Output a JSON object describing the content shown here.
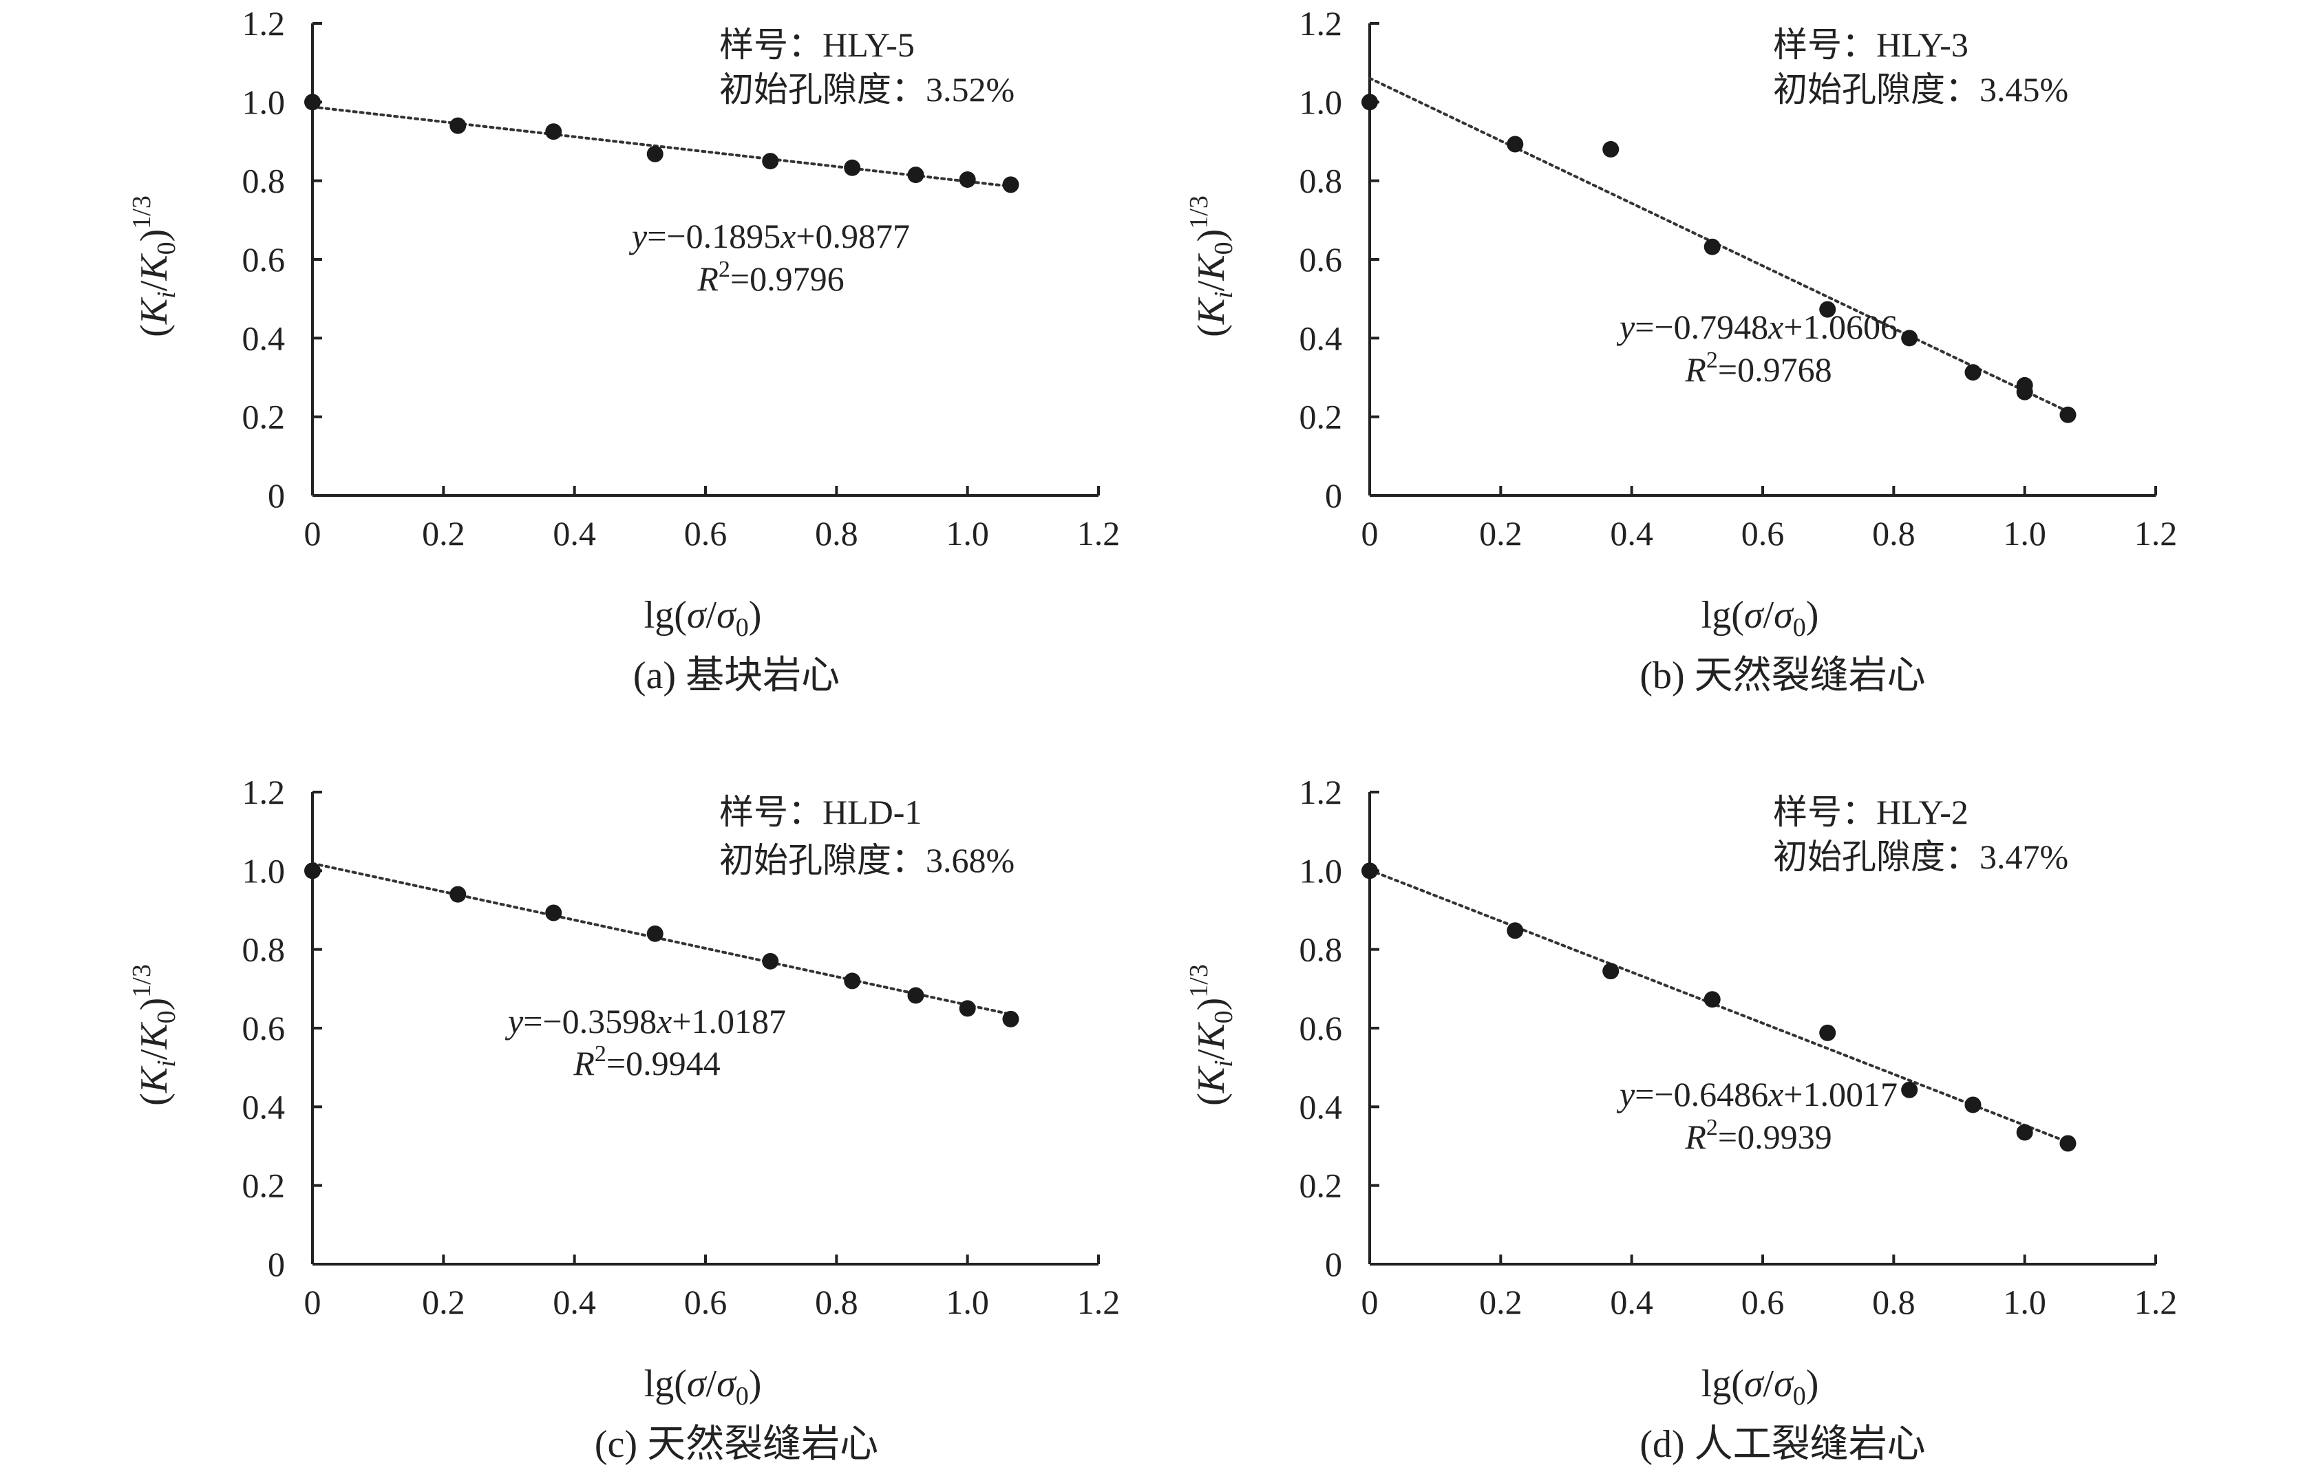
{
  "chart_data": [
    {
      "type": "scatter",
      "caption": "(a) 基块岩心",
      "sample_label": "样号：HLY-5",
      "porosity_label": "初始孔隙度：3.52%",
      "equation": "y=−0.1895x+0.9877",
      "r2": "R²=0.9796",
      "fit": {
        "slope": -0.1895,
        "intercept": 0.9877
      },
      "xlabel": "lg(σ/σ₀)",
      "ylabel": "(Kᵢ/K₀)¹ᐟ³",
      "xlim": [
        0,
        1.2
      ],
      "ylim": [
        0,
        1.2
      ],
      "xticks": [
        "0",
        "0.2",
        "0.4",
        "0.6",
        "0.8",
        "1.0",
        "1.2"
      ],
      "yticks": [
        "0",
        "0.2",
        "0.4",
        "0.6",
        "0.8",
        "1.0",
        "1.2"
      ],
      "points": [
        [
          0,
          1.0
        ],
        [
          0.222,
          0.94
        ],
        [
          0.368,
          0.925
        ],
        [
          0.523,
          0.868
        ],
        [
          0.699,
          0.85
        ],
        [
          0.824,
          0.833
        ],
        [
          0.921,
          0.815
        ],
        [
          1.0,
          0.803
        ],
        [
          1.066,
          0.79
        ]
      ]
    },
    {
      "type": "scatter",
      "caption": "(b) 天然裂缝岩心",
      "sample_label": "样号：HLY-3",
      "porosity_label": "初始孔隙度：3.45%",
      "equation": "y=−0.7948x+1.0606",
      "r2": "R²=0.9768",
      "fit": {
        "slope": -0.7948,
        "intercept": 1.0606
      },
      "xlabel": "lg(σ/σ₀)",
      "ylabel": "(Kᵢ/K₀)¹ᐟ³",
      "xlim": [
        0,
        1.2
      ],
      "ylim": [
        0,
        1.2
      ],
      "xticks": [
        "0",
        "0.2",
        "0.4",
        "0.6",
        "0.8",
        "1.0",
        "1.2"
      ],
      "yticks": [
        "0",
        "0.2",
        "0.4",
        "0.6",
        "0.8",
        "1.0",
        "1.2"
      ],
      "points": [
        [
          0,
          1.0
        ],
        [
          0.222,
          0.893
        ],
        [
          0.368,
          0.88
        ],
        [
          0.523,
          0.632
        ],
        [
          0.699,
          0.473
        ],
        [
          0.824,
          0.4
        ],
        [
          0.921,
          0.313
        ],
        [
          1.0,
          0.28
        ],
        [
          1.0,
          0.263
        ],
        [
          1.066,
          0.205
        ]
      ]
    },
    {
      "type": "scatter",
      "caption": "(c) 天然裂缝岩心",
      "sample_label": "样号：HLD-1",
      "porosity_label": "初始孔隙度：3.68%",
      "equation": "y=−0.3598x+1.0187",
      "r2": "R²=0.9944",
      "fit": {
        "slope": -0.3598,
        "intercept": 1.0187
      },
      "xlabel": "lg(σ/σ₀)",
      "ylabel": "(Kᵢ/K₀)¹ᐟ³",
      "xlim": [
        0,
        1.2
      ],
      "ylim": [
        0,
        1.2
      ],
      "xticks": [
        "0",
        "0.2",
        "0.4",
        "0.6",
        "0.8",
        "1.0",
        "1.2"
      ],
      "yticks": [
        "0",
        "0.2",
        "0.4",
        "0.6",
        "0.8",
        "1.0",
        "1.2"
      ],
      "points": [
        [
          0,
          1.0
        ],
        [
          0.222,
          0.94
        ],
        [
          0.368,
          0.893
        ],
        [
          0.523,
          0.84
        ],
        [
          0.699,
          0.77
        ],
        [
          0.824,
          0.72
        ],
        [
          0.921,
          0.683
        ],
        [
          1.0,
          0.65
        ],
        [
          1.066,
          0.623
        ]
      ]
    },
    {
      "type": "scatter",
      "caption": "(d) 人工裂缝岩心",
      "sample_label": "样号：HLY-2",
      "porosity_label": "初始孔隙度：3.47%",
      "equation": "y=−0.6486x+1.0017",
      "r2": "R²=0.9939",
      "fit": {
        "slope": -0.6486,
        "intercept": 1.0017
      },
      "xlabel": "lg(σ/σ₀)",
      "ylabel": "(Kᵢ/K₀)¹ᐟ³",
      "xlim": [
        0,
        1.2
      ],
      "ylim": [
        0,
        1.2
      ],
      "xticks": [
        "0",
        "0.2",
        "0.4",
        "0.6",
        "0.8",
        "1.0",
        "1.2"
      ],
      "yticks": [
        "0",
        "0.2",
        "0.4",
        "0.6",
        "0.8",
        "1.0",
        "1.2"
      ],
      "points": [
        [
          0,
          1.0
        ],
        [
          0.222,
          0.848
        ],
        [
          0.368,
          0.745
        ],
        [
          0.523,
          0.673
        ],
        [
          0.699,
          0.588
        ],
        [
          0.824,
          0.443
        ],
        [
          0.921,
          0.405
        ],
        [
          1.0,
          0.335
        ],
        [
          1.066,
          0.307
        ]
      ]
    }
  ]
}
